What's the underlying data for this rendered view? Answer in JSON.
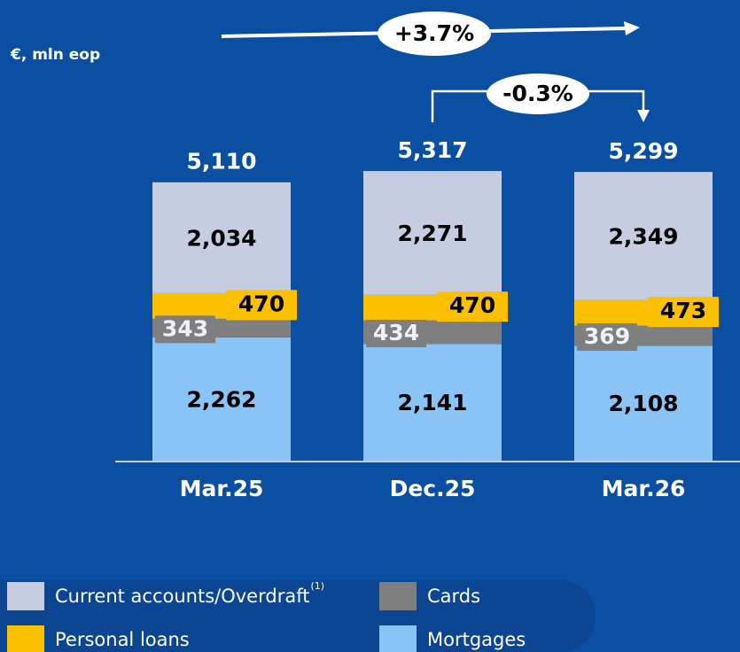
{
  "chart_data": {
    "type": "stacked_bar",
    "unit_note": "€, mln eop",
    "categories": [
      "Mar.25",
      "Dec.25",
      "Mar.26"
    ],
    "series": [
      {
        "name": "Mortgages",
        "color": "#8ac4f6",
        "values": [
          2262,
          2141,
          2108
        ],
        "value_labels": [
          "2,262",
          "2,141",
          "2,108"
        ]
      },
      {
        "name": "Cards",
        "color": "#7f7f7f",
        "values": [
          343,
          434,
          369
        ],
        "value_labels": [
          "343",
          "434",
          "369"
        ]
      },
      {
        "name": "Personal loans",
        "color": "#fbc000",
        "values": [
          470,
          470,
          473
        ],
        "value_labels": [
          "470",
          "470",
          "473"
        ]
      },
      {
        "name": "Current accounts/Overdraft",
        "note": "(1)",
        "color": "#c6cde0",
        "values": [
          2034,
          2271,
          2349
        ],
        "value_labels": [
          "2,034",
          "2,271",
          "2,349"
        ]
      }
    ],
    "totals": [
      5110,
      5317,
      5299
    ],
    "total_labels": [
      "5,110",
      "5,317",
      "5,299"
    ],
    "annotations": [
      "+3.7%",
      "-0.3%"
    ]
  }
}
